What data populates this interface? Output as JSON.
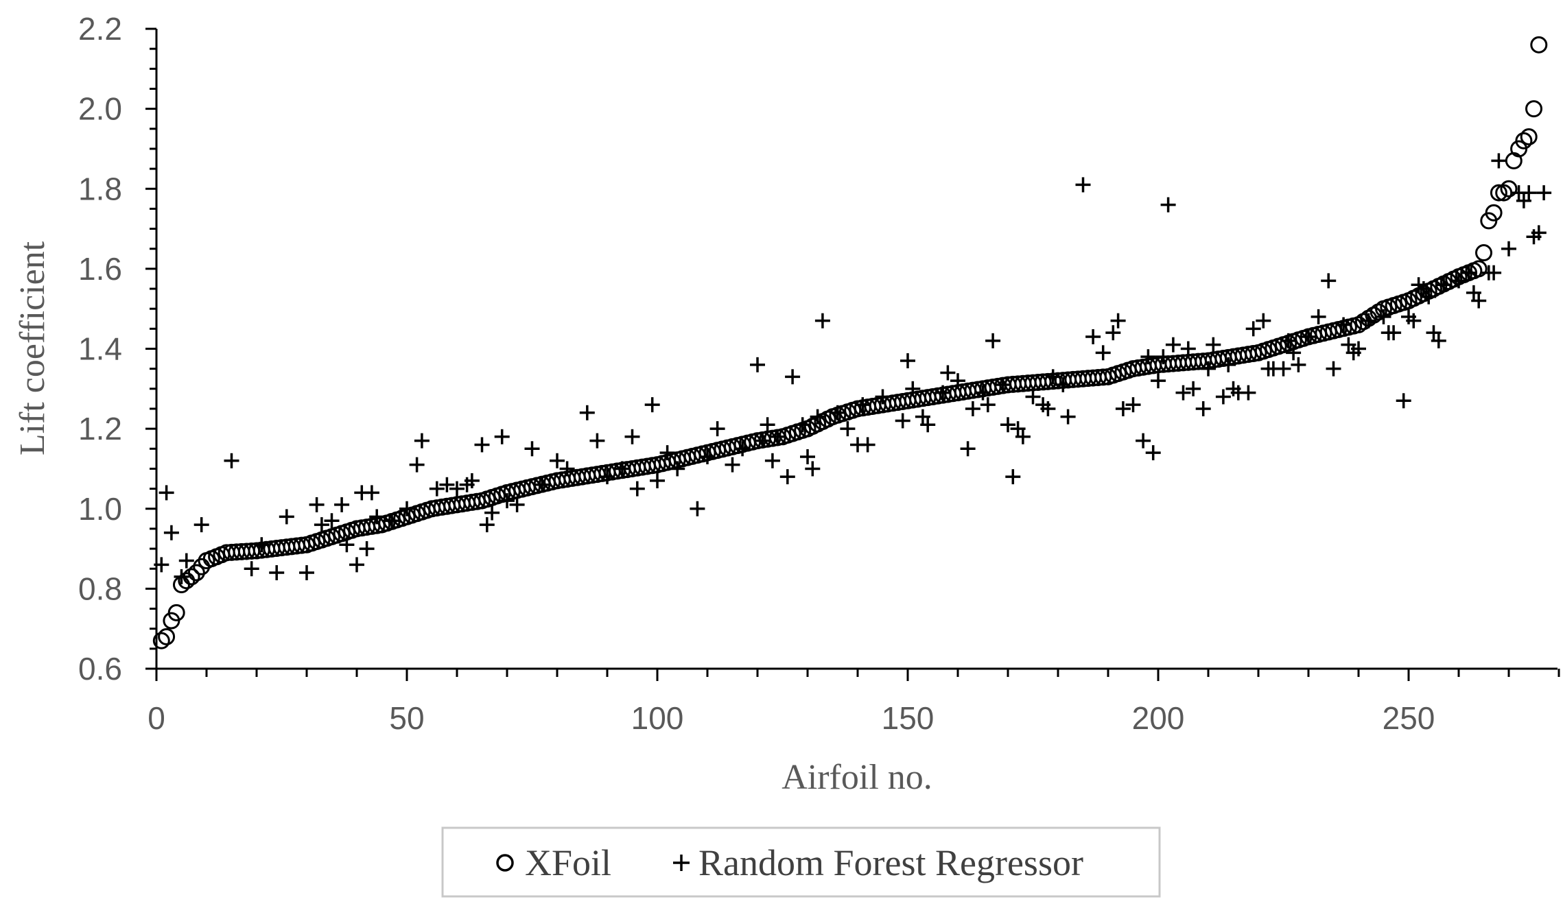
{
  "chart_data": {
    "type": "scatter",
    "xlabel": "Airfoil no.",
    "ylabel": "Lift coefficient",
    "xlim": [
      0,
      280
    ],
    "ylim": [
      0.6,
      2.2
    ],
    "xticks": [
      "0",
      "50",
      "100",
      "150",
      "200",
      "250"
    ],
    "yticks": [
      "0.6",
      "0.8",
      "1.0",
      "1.2",
      "1.4",
      "1.6",
      "1.8",
      "2.0",
      "2.2"
    ],
    "grid": false,
    "legend_position": "bottom",
    "colors": {
      "marker": "#000000",
      "axis": "#000000",
      "text": "#595959"
    },
    "series": [
      {
        "name": "XFoil",
        "marker": "circle",
        "anchors": [
          [
            1,
            0.67
          ],
          [
            2,
            0.68
          ],
          [
            3,
            0.72
          ],
          [
            4,
            0.74
          ],
          [
            5,
            0.81
          ],
          [
            6,
            0.82
          ],
          [
            8,
            0.84
          ],
          [
            10,
            0.87
          ],
          [
            14,
            0.89
          ],
          [
            20,
            0.895
          ],
          [
            30,
            0.91
          ],
          [
            40,
            0.95
          ],
          [
            45,
            0.96
          ],
          [
            50,
            0.98
          ],
          [
            55,
            1.0
          ],
          [
            60,
            1.01
          ],
          [
            65,
            1.02
          ],
          [
            70,
            1.04
          ],
          [
            80,
            1.07
          ],
          [
            90,
            1.09
          ],
          [
            100,
            1.11
          ],
          [
            110,
            1.14
          ],
          [
            120,
            1.17
          ],
          [
            125,
            1.18
          ],
          [
            130,
            1.2
          ],
          [
            135,
            1.23
          ],
          [
            140,
            1.25
          ],
          [
            145,
            1.26
          ],
          [
            150,
            1.27
          ],
          [
            160,
            1.29
          ],
          [
            165,
            1.3
          ],
          [
            170,
            1.31
          ],
          [
            180,
            1.32
          ],
          [
            190,
            1.33
          ],
          [
            195,
            1.35
          ],
          [
            200,
            1.36
          ],
          [
            210,
            1.37
          ],
          [
            220,
            1.39
          ],
          [
            225,
            1.41
          ],
          [
            230,
            1.43
          ],
          [
            240,
            1.46
          ],
          [
            245,
            1.5
          ],
          [
            250,
            1.52
          ],
          [
            255,
            1.55
          ],
          [
            260,
            1.58
          ],
          [
            264,
            1.6
          ]
        ],
        "points": [
          [
            265,
            1.64
          ],
          [
            266,
            1.72
          ],
          [
            267,
            1.74
          ],
          [
            268,
            1.79
          ],
          [
            269,
            1.79
          ],
          [
            270,
            1.8
          ],
          [
            271,
            1.87
          ],
          [
            272,
            1.9
          ],
          [
            273,
            1.92
          ],
          [
            274,
            1.93
          ],
          [
            275,
            2.0
          ],
          [
            276,
            2.16
          ]
        ]
      },
      {
        "name": "Random Forest Regressor",
        "marker": "plus",
        "points": [
          [
            1,
            0.86
          ],
          [
            2,
            1.04
          ],
          [
            3,
            0.94
          ],
          [
            5,
            0.83
          ],
          [
            6,
            0.87
          ],
          [
            9,
            0.96
          ],
          [
            15,
            1.12
          ],
          [
            19,
            0.85
          ],
          [
            21,
            0.91
          ],
          [
            24,
            0.84
          ],
          [
            26,
            0.98
          ],
          [
            30,
            0.84
          ],
          [
            32,
            1.01
          ],
          [
            33,
            0.96
          ],
          [
            35,
            0.97
          ],
          [
            37,
            1.01
          ],
          [
            38,
            0.91
          ],
          [
            40,
            0.86
          ],
          [
            41,
            1.04
          ],
          [
            42,
            0.9
          ],
          [
            43,
            1.04
          ],
          [
            44,
            0.98
          ],
          [
            47,
            0.97
          ],
          [
            50,
            1.0
          ],
          [
            52,
            1.11
          ],
          [
            53,
            1.17
          ],
          [
            56,
            1.05
          ],
          [
            58,
            1.06
          ],
          [
            60,
            1.05
          ],
          [
            62,
            1.06
          ],
          [
            63,
            1.07
          ],
          [
            65,
            1.16
          ],
          [
            66,
            0.96
          ],
          [
            67,
            0.99
          ],
          [
            69,
            1.18
          ],
          [
            70,
            1.02
          ],
          [
            72,
            1.01
          ],
          [
            75,
            1.15
          ],
          [
            77,
            1.06
          ],
          [
            80,
            1.12
          ],
          [
            82,
            1.1
          ],
          [
            86,
            1.24
          ],
          [
            88,
            1.17
          ],
          [
            90,
            1.08
          ],
          [
            93,
            1.1
          ],
          [
            95,
            1.18
          ],
          [
            96,
            1.05
          ],
          [
            99,
            1.26
          ],
          [
            100,
            1.07
          ],
          [
            102,
            1.14
          ],
          [
            104,
            1.1
          ],
          [
            108,
            1.0
          ],
          [
            110,
            1.13
          ],
          [
            112,
            1.2
          ],
          [
            115,
            1.11
          ],
          [
            117,
            1.15
          ],
          [
            120,
            1.36
          ],
          [
            121,
            1.17
          ],
          [
            122,
            1.21
          ],
          [
            123,
            1.12
          ],
          [
            124,
            1.18
          ],
          [
            126,
            1.08
          ],
          [
            127,
            1.33
          ],
          [
            129,
            1.21
          ],
          [
            130,
            1.13
          ],
          [
            131,
            1.1
          ],
          [
            132,
            1.23
          ],
          [
            133,
            1.47
          ],
          [
            136,
            1.24
          ],
          [
            138,
            1.2
          ],
          [
            140,
            1.16
          ],
          [
            141,
            1.26
          ],
          [
            142,
            1.16
          ],
          [
            145,
            1.28
          ],
          [
            149,
            1.22
          ],
          [
            150,
            1.37
          ],
          [
            151,
            1.3
          ],
          [
            153,
            1.23
          ],
          [
            154,
            1.21
          ],
          [
            157,
            1.29
          ],
          [
            158,
            1.34
          ],
          [
            160,
            1.32
          ],
          [
            162,
            1.15
          ],
          [
            163,
            1.25
          ],
          [
            165,
            1.29
          ],
          [
            166,
            1.26
          ],
          [
            167,
            1.42
          ],
          [
            169,
            1.31
          ],
          [
            170,
            1.21
          ],
          [
            171,
            1.08
          ],
          [
            172,
            1.2
          ],
          [
            173,
            1.18
          ],
          [
            175,
            1.28
          ],
          [
            177,
            1.26
          ],
          [
            178,
            1.25
          ],
          [
            179,
            1.33
          ],
          [
            181,
            1.31
          ],
          [
            182,
            1.23
          ],
          [
            185,
            1.81
          ],
          [
            187,
            1.43
          ],
          [
            189,
            1.39
          ],
          [
            191,
            1.44
          ],
          [
            192,
            1.47
          ],
          [
            193,
            1.25
          ],
          [
            195,
            1.26
          ],
          [
            197,
            1.17
          ],
          [
            198,
            1.38
          ],
          [
            199,
            1.14
          ],
          [
            200,
            1.32
          ],
          [
            201,
            1.38
          ],
          [
            202,
            1.76
          ],
          [
            203,
            1.41
          ],
          [
            205,
            1.29
          ],
          [
            206,
            1.4
          ],
          [
            207,
            1.3
          ],
          [
            209,
            1.25
          ],
          [
            210,
            1.35
          ],
          [
            211,
            1.41
          ],
          [
            213,
            1.28
          ],
          [
            214,
            1.36
          ],
          [
            215,
            1.3
          ],
          [
            216,
            1.29
          ],
          [
            218,
            1.29
          ],
          [
            219,
            1.45
          ],
          [
            221,
            1.47
          ],
          [
            222,
            1.35
          ],
          [
            223,
            1.35
          ],
          [
            225,
            1.35
          ],
          [
            226,
            1.42
          ],
          [
            227,
            1.39
          ],
          [
            228,
            1.36
          ],
          [
            230,
            1.43
          ],
          [
            232,
            1.48
          ],
          [
            234,
            1.57
          ],
          [
            235,
            1.35
          ],
          [
            237,
            1.46
          ],
          [
            238,
            1.41
          ],
          [
            239,
            1.39
          ],
          [
            240,
            1.4
          ],
          [
            242,
            1.47
          ],
          [
            245,
            1.48
          ],
          [
            246,
            1.44
          ],
          [
            247,
            1.44
          ],
          [
            249,
            1.27
          ],
          [
            250,
            1.48
          ],
          [
            251,
            1.47
          ],
          [
            252,
            1.56
          ],
          [
            253,
            1.55
          ],
          [
            254,
            1.53
          ],
          [
            255,
            1.44
          ],
          [
            256,
            1.42
          ],
          [
            257,
            1.56
          ],
          [
            260,
            1.57
          ],
          [
            262,
            1.59
          ],
          [
            263,
            1.54
          ],
          [
            264,
            1.52
          ],
          [
            266,
            1.59
          ],
          [
            267,
            1.59
          ],
          [
            268,
            1.87
          ],
          [
            270,
            1.65
          ],
          [
            272,
            1.79
          ],
          [
            273,
            1.77
          ],
          [
            274,
            1.79
          ],
          [
            275,
            1.68
          ],
          [
            276,
            1.69
          ],
          [
            277,
            1.79
          ]
        ]
      }
    ]
  }
}
